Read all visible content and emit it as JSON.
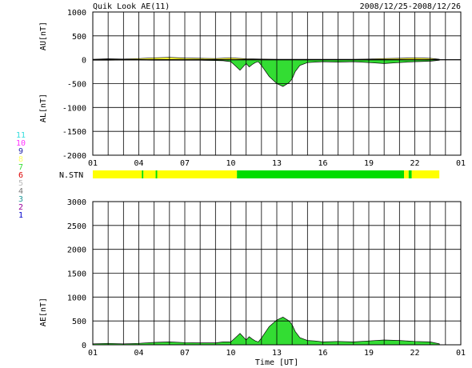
{
  "header": {
    "title": "Quik Look AE(11)",
    "date_range": "2008/12/25-2008/12/26"
  },
  "station_legend": [
    {
      "label": "11",
      "color": "#33dddd"
    },
    {
      "label": "10",
      "color": "#ff33ff"
    },
    {
      "label": "9",
      "color": "#2222aa"
    },
    {
      "label": "8",
      "color": "#ffff66"
    },
    {
      "label": "7",
      "color": "#33dd33"
    },
    {
      "label": "6",
      "color": "#dd0000"
    },
    {
      "label": "5",
      "color": "#bbbbbb"
    },
    {
      "label": "4",
      "color": "#777777"
    },
    {
      "label": "3",
      "color": "#229999"
    },
    {
      "label": "2",
      "color": "#990099"
    },
    {
      "label": "1",
      "color": "#0000cc"
    }
  ],
  "colors": {
    "positive_fill": "#ffff33",
    "negative_fill": "#33dd33",
    "station_yellow": "#ffff00",
    "station_green": "#00dd00"
  },
  "chart_data": [
    {
      "id": "au_al",
      "type": "area",
      "y_axis_label_top": "AU[nT]",
      "y_axis_label_bottom": "AL[nT]",
      "ylim": [
        -2000,
        1000
      ],
      "yticks": [
        1000,
        500,
        0,
        -500,
        -1000,
        -1500,
        -2000
      ],
      "xlim": [
        0,
        24
      ],
      "x_tick_labels": [
        "01",
        "04",
        "07",
        "10",
        "13",
        "16",
        "19",
        "22",
        "01"
      ],
      "grid": true,
      "series": [
        {
          "name": "AU",
          "fill": "#ffff33",
          "x": [
            0,
            1,
            2,
            3,
            4,
            5,
            6,
            7,
            8,
            9,
            10,
            11,
            12,
            13,
            14,
            15,
            16,
            17,
            18,
            19,
            20,
            21,
            22,
            22.6
          ],
          "values": [
            10,
            20,
            15,
            25,
            40,
            50,
            35,
            30,
            25,
            40,
            20,
            15,
            10,
            10,
            10,
            10,
            10,
            10,
            15,
            25,
            30,
            40,
            30,
            10
          ]
        },
        {
          "name": "AL",
          "fill": "#33dd33",
          "x": [
            0,
            1,
            2,
            3,
            4,
            5,
            6,
            7,
            8,
            8.5,
            9,
            9.3,
            9.6,
            10,
            10.2,
            10.4,
            10.6,
            10.8,
            11,
            11.5,
            12,
            12.4,
            12.8,
            13,
            13.2,
            13.5,
            14,
            14.5,
            15,
            16,
            17,
            18,
            19,
            20,
            21,
            22,
            22.6
          ],
          "values": [
            -10,
            -10,
            -5,
            -5,
            -10,
            -10,
            -10,
            -10,
            -15,
            -20,
            -40,
            -130,
            -220,
            -80,
            -150,
            -100,
            -60,
            -40,
            -120,
            -350,
            -500,
            -560,
            -480,
            -400,
            -250,
            -120,
            -60,
            -50,
            -40,
            -50,
            -40,
            -60,
            -80,
            -60,
            -40,
            -30,
            -10
          ]
        }
      ]
    },
    {
      "id": "station_count",
      "type": "table",
      "label": "N.STN",
      "segments": [
        {
          "start": 0,
          "end": 3.2,
          "value": 8
        },
        {
          "start": 3.2,
          "end": 3.3,
          "value": 7
        },
        {
          "start": 3.3,
          "end": 4.1,
          "value": 8
        },
        {
          "start": 4.1,
          "end": 4.2,
          "value": 7
        },
        {
          "start": 4.2,
          "end": 9.4,
          "value": 8
        },
        {
          "start": 9.4,
          "end": 20.3,
          "value": 7
        },
        {
          "start": 20.3,
          "end": 20.6,
          "value": 8
        },
        {
          "start": 20.6,
          "end": 20.8,
          "value": 7
        },
        {
          "start": 20.8,
          "end": 22.6,
          "value": 8
        }
      ]
    },
    {
      "id": "ae",
      "type": "area",
      "y_axis_label": "AE[nT]",
      "ylim": [
        0,
        3000
      ],
      "yticks": [
        3000,
        2500,
        2000,
        1500,
        1000,
        500,
        0
      ],
      "xlim": [
        0,
        24
      ],
      "x_tick_labels": [
        "01",
        "04",
        "07",
        "10",
        "13",
        "16",
        "19",
        "22",
        "01"
      ],
      "xlabel": "Time [UT]",
      "grid": true,
      "series": [
        {
          "name": "AE",
          "fill": "#33dd33",
          "x": [
            0,
            1,
            2,
            3,
            4,
            5,
            6,
            7,
            8,
            8.5,
            9,
            9.3,
            9.6,
            10,
            10.2,
            10.4,
            10.6,
            10.8,
            11,
            11.5,
            12,
            12.4,
            12.8,
            13,
            13.2,
            13.5,
            14,
            14.5,
            15,
            16,
            17,
            18,
            19,
            20,
            21,
            22,
            22.6
          ],
          "values": [
            20,
            30,
            20,
            30,
            50,
            60,
            45,
            40,
            40,
            60,
            60,
            150,
            240,
            100,
            170,
            120,
            80,
            60,
            140,
            380,
            520,
            580,
            500,
            420,
            280,
            150,
            90,
            80,
            60,
            70,
            60,
            80,
            100,
            90,
            70,
            60,
            20
          ]
        }
      ]
    }
  ]
}
